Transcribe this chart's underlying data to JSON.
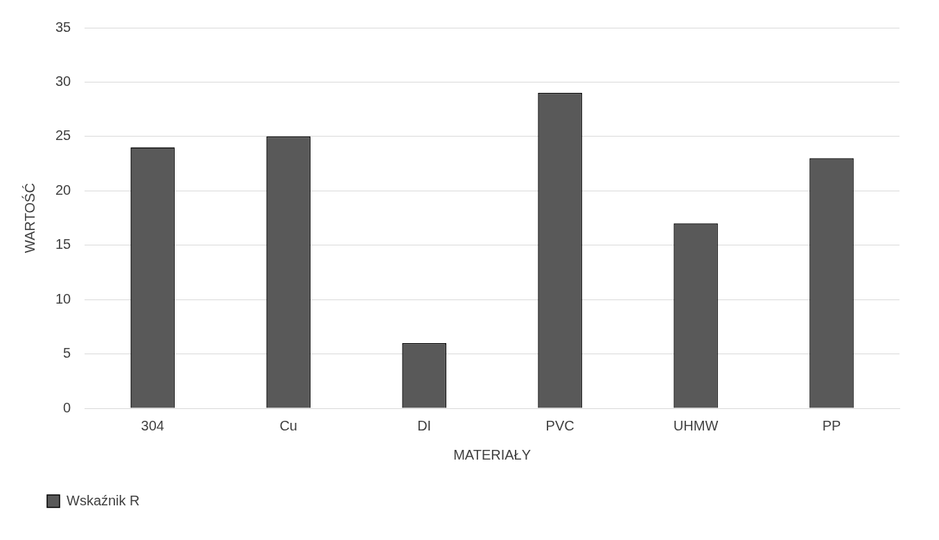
{
  "chart_data": {
    "type": "bar",
    "xlabel": "MATERIAŁY",
    "ylabel": "WARTOŚĆ",
    "categories": [
      "304",
      "Cu",
      "DI",
      "PVC",
      "UHMW",
      "PP"
    ],
    "series": [
      {
        "name": "Wskaźnik R",
        "color": "#595959",
        "values": [
          24,
          25,
          6,
          29,
          17,
          23
        ]
      }
    ],
    "ylim": [
      0,
      35
    ],
    "yticks": [
      0,
      5,
      10,
      15,
      20,
      25,
      30,
      35
    ],
    "grid": "y",
    "legend": "bottom left"
  }
}
